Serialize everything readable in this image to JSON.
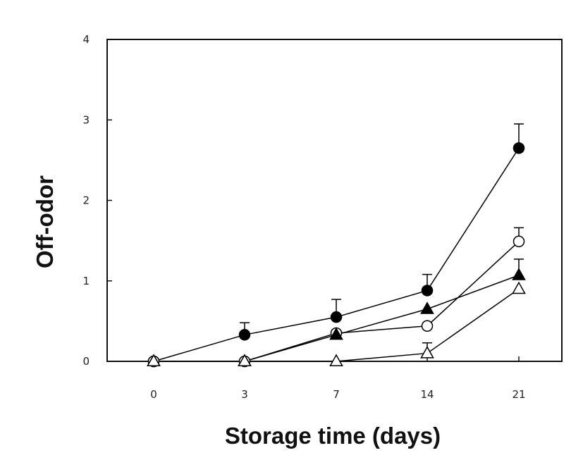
{
  "chart_data": {
    "type": "line",
    "title": "",
    "xlabel": "Storage time (days)",
    "ylabel": "Off-odor",
    "x": [
      "0",
      "3",
      "7",
      "14",
      "21"
    ],
    "ylim": [
      0,
      4
    ],
    "yticks": [
      "0",
      "1",
      "2",
      "3",
      "4"
    ],
    "grid": false,
    "legend": "none",
    "series": [
      {
        "marker": "circle-filled",
        "color": "#000000",
        "values": [
          0,
          0.33,
          0.55,
          0.88,
          2.65
        ],
        "errors": [
          0,
          0.15,
          0.22,
          0.2,
          0.3
        ]
      },
      {
        "marker": "circle-open",
        "color": "#000000",
        "values": [
          0,
          0,
          0.35,
          0.44,
          1.49
        ],
        "errors": [
          0,
          0,
          0,
          0,
          0.17
        ]
      },
      {
        "marker": "triangle-filled",
        "color": "#000000",
        "values": [
          0,
          0,
          0.33,
          0.65,
          1.07
        ],
        "errors": [
          0,
          0,
          0,
          0,
          0.2
        ]
      },
      {
        "marker": "triangle-open",
        "color": "#000000",
        "values": [
          0,
          0,
          0,
          0.1,
          0.9
        ],
        "errors": [
          0,
          0,
          0,
          0.13,
          0
        ]
      }
    ]
  }
}
